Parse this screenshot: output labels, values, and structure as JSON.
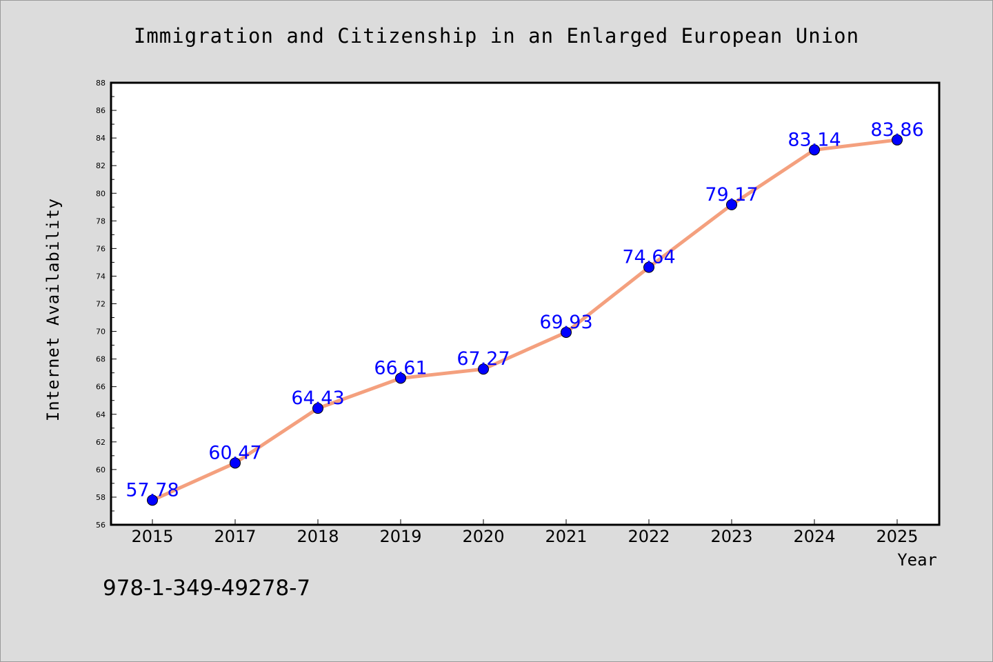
{
  "chart_data": {
    "type": "line",
    "title": "Immigration and Citizenship in an Enlarged European Union",
    "xlabel": "Year",
    "ylabel": "Internet Availability",
    "categories": [
      "2015",
      "2017",
      "2018",
      "2019",
      "2020",
      "2021",
      "2022",
      "2023",
      "2024",
      "2025"
    ],
    "series": [
      {
        "values": [
          57.78,
          60.47,
          64.43,
          66.61,
          67.27,
          69.93,
          74.64,
          79.17,
          83.14,
          83.86
        ],
        "labels": [
          "57.78",
          "60.47",
          "64.43",
          "66.61",
          "67.27",
          "69.93",
          "74.64",
          "79.17",
          "83.14",
          "83.86"
        ]
      }
    ],
    "ylim": [
      56,
      88
    ],
    "yticks": [
      "56",
      "58",
      "60",
      "62",
      "64",
      "66",
      "68",
      "70",
      "72",
      "74",
      "76",
      "78",
      "80",
      "82",
      "84",
      "86",
      "88"
    ],
    "grid": false,
    "line_color": "#f4a07e",
    "marker_color": "#0000ff",
    "label_color": "#0000ff"
  },
  "annotation": "978-1-349-49278-7"
}
